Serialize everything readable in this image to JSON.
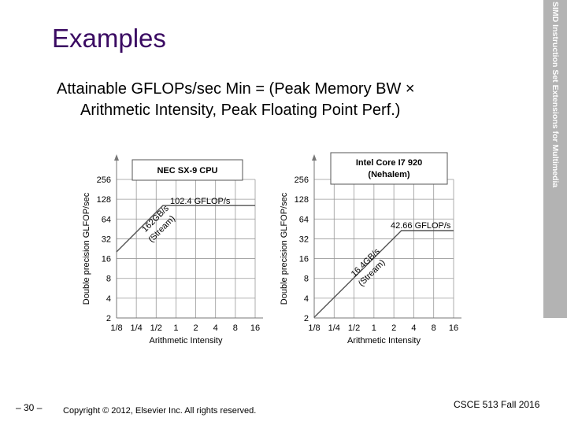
{
  "slide": {
    "title": "Examples",
    "subtitle_line1": "Attainable GFLOPs/sec Min = (Peak Memory BW ×",
    "subtitle_line2": "Arithmetic Intensity, Peak Floating Point Perf.)",
    "sidebar_text": "SIMD Instruction Set Extensions for Multimedia",
    "page_number": "– 30 –",
    "copyright": "Copyright © 2012, Elsevier Inc. All rights reserved.",
    "course": "CSCE 513 Fall 2016"
  },
  "colors": {
    "title": "#3a0a62",
    "sidebar": "#b3b3b3",
    "grid": "#999999",
    "roofline": "#555555"
  },
  "chart_data": [
    {
      "type": "line",
      "title": "NEC SX-9 CPU",
      "xlabel": "Arithmetic Intensity",
      "ylabel": "Double precision GLFOP/sec",
      "x_scale": "log2",
      "y_scale": "log2",
      "xlim": [
        0.125,
        16
      ],
      "ylim": [
        2,
        256
      ],
      "x_ticks": [
        0.125,
        0.25,
        0.5,
        1,
        2,
        4,
        8,
        16
      ],
      "x_tick_labels": [
        "1/8",
        "1/4",
        "1/2",
        "1",
        "2",
        "4",
        "8",
        "16"
      ],
      "y_ticks": [
        2,
        4,
        8,
        16,
        32,
        64,
        128,
        256
      ],
      "y_tick_labels": [
        "2",
        "4",
        "8",
        "16",
        "32",
        "64",
        "128",
        "256"
      ],
      "grid": true,
      "peak_gflops": 102.4,
      "peak_bw": 162,
      "series": [
        {
          "x": [
            0.125,
            0.632,
            16
          ],
          "y": [
            20.25,
            102.4,
            102.4
          ]
        }
      ],
      "annotations": [
        "102.4 GFLOP/s",
        "162GB/s",
        "(Stream)"
      ]
    },
    {
      "type": "line",
      "title": "Intel Core I7 920 (Nehalem)",
      "xlabel": "Arithmetic Intensity",
      "ylabel": "Double precision GLFOP/sec",
      "x_scale": "log2",
      "y_scale": "log2",
      "xlim": [
        0.125,
        16
      ],
      "ylim": [
        2,
        256
      ],
      "x_ticks": [
        0.125,
        0.25,
        0.5,
        1,
        2,
        4,
        8,
        16
      ],
      "x_tick_labels": [
        "1/8",
        "1/4",
        "1/2",
        "1",
        "2",
        "4",
        "8",
        "16"
      ],
      "y_ticks": [
        2,
        4,
        8,
        16,
        32,
        64,
        128,
        256
      ],
      "y_tick_labels": [
        "2",
        "4",
        "8",
        "16",
        "32",
        "64",
        "128",
        "256"
      ],
      "grid": true,
      "peak_gflops": 42.66,
      "peak_bw": 16.4,
      "series": [
        {
          "x": [
            0.125,
            2.6,
            16
          ],
          "y": [
            2.05,
            42.66,
            42.66
          ]
        }
      ],
      "annotations": [
        "42.66 GFLOP/s",
        "16.4GB/s",
        "(Stream)"
      ]
    }
  ]
}
